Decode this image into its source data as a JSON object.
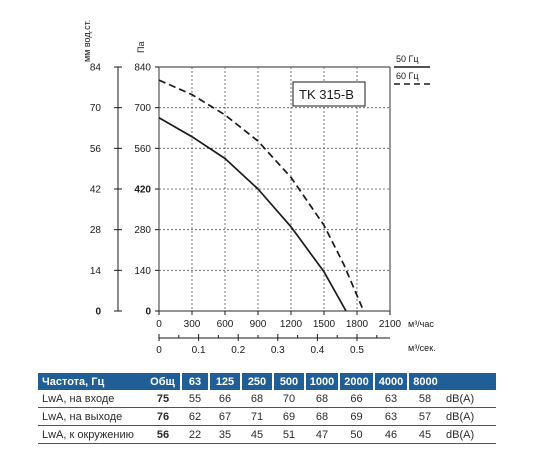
{
  "chart_data": {
    "type": "line",
    "model": "TK 315-B",
    "y_left_label": "мм вод.ст.",
    "y_left_ticks": [
      "84",
      "70",
      "56",
      "42",
      "28",
      "14",
      "0"
    ],
    "y_right_label": "Па",
    "y_right_ticks": [
      "840",
      "700",
      "560",
      "420",
      "280",
      "140",
      "0"
    ],
    "ylim": [
      0,
      840
    ],
    "x_label": "м³/час",
    "x_ticks": [
      "0",
      "300",
      "600",
      "900",
      "1200",
      "1500",
      "1800",
      "2100"
    ],
    "xlim": [
      0,
      2100
    ],
    "x2_label": "м³/сек.",
    "x2_ticks": [
      "0",
      "0.1",
      "0.2",
      "0.3",
      "0.4",
      "0.5"
    ],
    "grid": true,
    "legend_position": "top-right",
    "series": [
      {
        "name": "50 Гц",
        "style": "solid",
        "x": [
          0,
          300,
          600,
          900,
          1200,
          1500,
          1700
        ],
        "y": [
          665,
          600,
          525,
          420,
          290,
          135,
          0
        ]
      },
      {
        "name": "60 Гц",
        "style": "dashed",
        "x": [
          0,
          300,
          600,
          900,
          1200,
          1500,
          1680,
          1860
        ],
        "y": [
          795,
          745,
          675,
          585,
          460,
          295,
          160,
          0
        ]
      }
    ]
  },
  "table": {
    "header": [
      "Частота, Гц",
      "Общ",
      "63",
      "125",
      "250",
      "500",
      "1000",
      "2000",
      "4000",
      "8000"
    ],
    "rows": [
      {
        "label": "LwA, на входе",
        "total": "75",
        "values": [
          "55",
          "66",
          "68",
          "70",
          "68",
          "66",
          "63",
          "58"
        ],
        "unit": "dB(A)"
      },
      {
        "label": "LwA, на выходе",
        "total": "76",
        "values": [
          "62",
          "67",
          "71",
          "69",
          "68",
          "69",
          "63",
          "57"
        ],
        "unit": "dB(A)"
      },
      {
        "label": "LwA, к окружению",
        "total": "56",
        "values": [
          "22",
          "35",
          "45",
          "51",
          "47",
          "50",
          "46",
          "45"
        ],
        "unit": "dB(A)"
      }
    ]
  }
}
